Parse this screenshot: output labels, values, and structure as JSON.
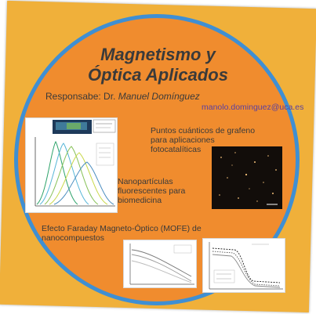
{
  "poster": {
    "title_line1": "Magnetismo y",
    "title_line2": "Óptica Aplicados",
    "responsible_label": "Responsabe: Dr. ",
    "responsible_name": "Manuel Domínguez",
    "email": "manolo.dominguez@uca.es"
  },
  "topics": {
    "quantum_dots": [
      "Puntos cuánticos de grafeno",
      "para aplicaciones",
      "fotocatalíticas"
    ],
    "nanoparticles": [
      "Nanopartículas",
      "fluorescentes para",
      "biomedicina"
    ],
    "faraday": [
      "Efecto Faraday Magneto-Óptico (MOFE) de",
      "nanocompuestos"
    ]
  },
  "colors": {
    "card": "#f0b03a",
    "disc": "#f08c2e",
    "ring": "#3f8fd3"
  },
  "icons": [
    "fluorescence-spectra-plot",
    "microscopy-image",
    "faraday-curves-plot",
    "hysteresis-loop-plot"
  ]
}
